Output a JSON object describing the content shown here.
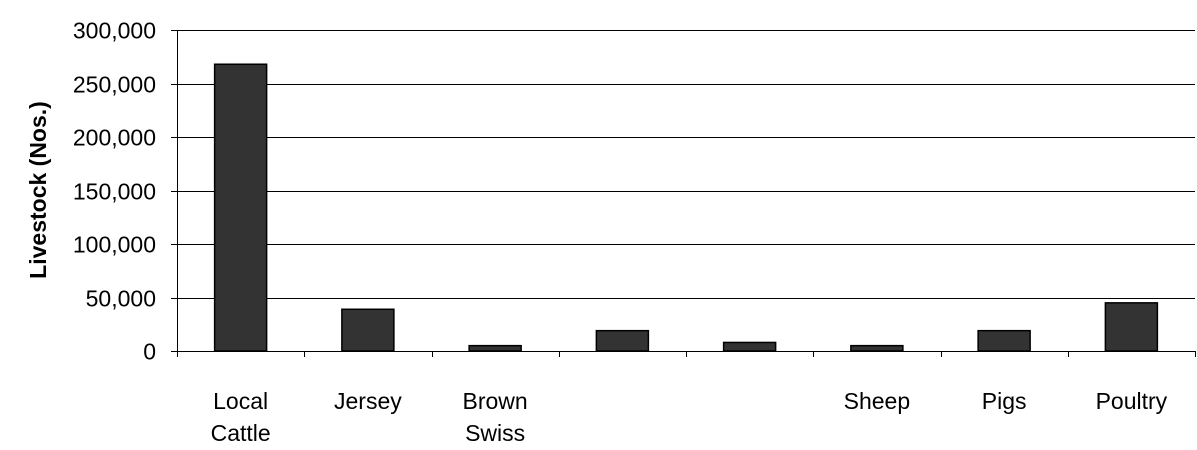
{
  "chart_data": {
    "type": "bar",
    "title": "",
    "xlabel": "",
    "ylabel": "Livestock (Nos.)",
    "ylim": [
      0,
      300000
    ],
    "yticks": [
      0,
      50000,
      100000,
      150000,
      200000,
      250000,
      300000
    ],
    "ytick_labels": [
      "0",
      "50,000",
      "100,000",
      "150,000",
      "200,000",
      "250,000",
      "300,000"
    ],
    "grid": true,
    "legend": "none",
    "bar_color": "#333333",
    "categories": [
      [
        "Local",
        "Cattle"
      ],
      [
        "Jersey"
      ],
      [
        "Brown",
        "Swiss"
      ],
      [
        ""
      ],
      [
        ""
      ],
      [
        "Sheep"
      ],
      [
        "Pigs"
      ],
      [
        "Poultry"
      ]
    ],
    "values": [
      268000,
      39000,
      5000,
      19000,
      8000,
      5000,
      19000,
      45000
    ]
  }
}
